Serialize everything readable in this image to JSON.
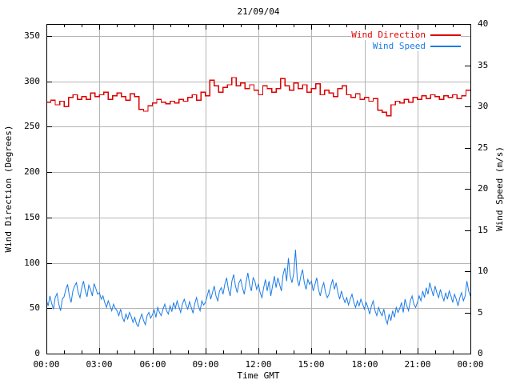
{
  "title": "21/09/04",
  "axes": {
    "x": {
      "label": "Time GMT",
      "tick_labels": [
        "00:00",
        "03:00",
        "06:00",
        "09:00",
        "12:00",
        "15:00",
        "18:00",
        "21:00",
        "00:00"
      ],
      "major_step_min": 180,
      "minor_step_min": 60,
      "range_min": [
        0,
        1440
      ]
    },
    "left": {
      "label": "Wind Direction (Degrees)",
      "ticks": [
        0,
        50,
        100,
        150,
        200,
        250,
        300,
        350
      ],
      "range": [
        0,
        363
      ]
    },
    "right": {
      "label": "Wind Speed (m/s)",
      "ticks": [
        0,
        5,
        10,
        15,
        20,
        25,
        30,
        35,
        40
      ],
      "range": [
        0,
        40
      ]
    }
  },
  "legend": {
    "position": "top-right-inside",
    "entries": [
      {
        "label": "Wind Direction",
        "color": "#dd0000"
      },
      {
        "label": "Wind Speed",
        "color": "#1c7ce6"
      }
    ]
  },
  "colors": {
    "frame": "#000000",
    "grid": "#b4b4b4",
    "background": "#ffffff",
    "wind_direction": "#dd0000",
    "wind_speed": "#1c7ce6"
  },
  "chart_data": {
    "type": "line",
    "title": "21/09/04",
    "xlabel": "Time GMT",
    "x_tick_labels": [
      "00:00",
      "03:00",
      "06:00",
      "09:00",
      "12:00",
      "15:00",
      "18:00",
      "21:00",
      "00:00"
    ],
    "grid": true,
    "series": [
      {
        "name": "Wind Direction",
        "axis": "left",
        "unit": "Degrees",
        "style": "steps",
        "color": "#dd0000",
        "x_start_min": 0,
        "x_step_min": 15,
        "values": [
          277,
          279,
          274,
          278,
          272,
          282,
          285,
          280,
          283,
          280,
          287,
          283,
          285,
          288,
          280,
          284,
          287,
          283,
          279,
          286,
          283,
          269,
          267,
          273,
          276,
          280,
          277,
          275,
          278,
          276,
          280,
          278,
          282,
          285,
          279,
          288,
          284,
          301,
          295,
          288,
          293,
          296,
          304,
          295,
          298,
          292,
          296,
          290,
          285,
          295,
          292,
          288,
          292,
          303,
          295,
          290,
          298,
          292,
          296,
          288,
          292,
          297,
          285,
          290,
          287,
          283,
          292,
          295,
          285,
          282,
          286,
          280,
          282,
          278,
          281,
          268,
          266,
          262,
          274,
          278,
          276,
          280,
          277,
          282,
          280,
          284,
          281,
          285,
          283,
          280,
          284,
          282,
          285,
          281,
          284,
          290,
          290
        ]
      },
      {
        "name": "Wind Speed",
        "axis": "right",
        "unit": "m/s",
        "style": "lines",
        "color": "#1c7ce6",
        "x_start_min": 0,
        "x_step_min": 6,
        "values": [
          6.5,
          5.8,
          7.0,
          6.1,
          5.4,
          6.8,
          7.3,
          6.0,
          5.2,
          6.6,
          6.9,
          7.8,
          8.4,
          7.0,
          6.2,
          7.6,
          8.2,
          8.6,
          7.4,
          6.8,
          8.0,
          8.8,
          7.6,
          6.9,
          8.3,
          7.8,
          7.0,
          8.5,
          7.9,
          7.2,
          7.4,
          6.6,
          7.0,
          6.2,
          5.6,
          6.4,
          5.8,
          5.2,
          6.0,
          5.5,
          5.2,
          4.6,
          5.4,
          4.4,
          3.9,
          4.8,
          4.2,
          5.0,
          4.5,
          3.8,
          4.4,
          3.6,
          3.3,
          4.2,
          4.8,
          4.0,
          3.5,
          4.6,
          5.0,
          4.3,
          4.7,
          5.3,
          4.4,
          5.6,
          5.0,
          4.6,
          5.4,
          6.0,
          5.2,
          4.8,
          5.8,
          5.1,
          6.2,
          5.5,
          6.4,
          5.7,
          5.0,
          6.0,
          6.6,
          5.9,
          5.4,
          6.3,
          5.6,
          4.9,
          6.1,
          6.8,
          5.8,
          5.2,
          6.4,
          5.9,
          6.2,
          7.0,
          7.8,
          6.6,
          7.4,
          8.2,
          7.0,
          6.4,
          7.6,
          8.0,
          7.2,
          8.4,
          9.2,
          7.8,
          7.0,
          8.8,
          9.6,
          8.2,
          7.4,
          8.6,
          9.0,
          8.0,
          7.2,
          8.6,
          9.8,
          8.4,
          7.6,
          9.2,
          8.8,
          7.8,
          8.4,
          7.4,
          6.8,
          8.0,
          9.0,
          7.6,
          8.8,
          7.0,
          8.2,
          9.4,
          8.0,
          9.2,
          8.4,
          7.6,
          9.6,
          10.4,
          8.8,
          11.6,
          9.4,
          8.6,
          9.8,
          12.6,
          9.0,
          8.2,
          9.4,
          10.2,
          8.6,
          7.8,
          9.0,
          8.4,
          8.8,
          7.6,
          8.4,
          9.2,
          7.8,
          7.0,
          8.0,
          8.6,
          7.4,
          6.8,
          7.2,
          8.2,
          9.0,
          7.8,
          8.6,
          7.4,
          6.6,
          7.6,
          6.8,
          6.2,
          6.8,
          5.9,
          6.6,
          7.2,
          6.2,
          5.6,
          6.4,
          5.8,
          6.6,
          6.0,
          5.4,
          6.2,
          5.6,
          4.8,
          5.8,
          6.4,
          5.2,
          4.6,
          5.6,
          5.0,
          4.6,
          5.4,
          4.2,
          3.6,
          4.8,
          4.0,
          5.2,
          4.4,
          5.6,
          5.0,
          5.5,
          6.2,
          5.0,
          6.6,
          5.8,
          5.2,
          6.4,
          7.0,
          6.0,
          5.6,
          6.2,
          7.0,
          6.4,
          7.6,
          6.8,
          8.0,
          7.2,
          8.6,
          7.8,
          7.0,
          8.2,
          7.4,
          6.8,
          7.8,
          7.0,
          6.4,
          7.4,
          6.6,
          7.6,
          7.0,
          6.2,
          7.2,
          6.6,
          5.8,
          6.8,
          7.4,
          6.4,
          7.0,
          8.8,
          7.6,
          7.0
        ]
      }
    ]
  }
}
